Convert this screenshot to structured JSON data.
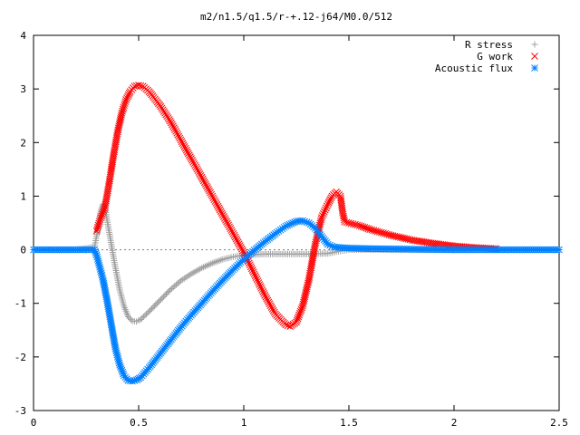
{
  "chart_data": {
    "type": "scatter",
    "title": "m2/n1.5/q1.5/r-+.12-j64/M0.0/512",
    "xlabel": "",
    "ylabel": "",
    "xlim": [
      0,
      2.5
    ],
    "ylim": [
      -3,
      4
    ],
    "x_ticks": [
      "0",
      "0.5",
      "1",
      "1.5",
      "2",
      "2.5"
    ],
    "y_ticks": [
      "-3",
      "-2",
      "-1",
      "0",
      "1",
      "2",
      "3",
      "4"
    ],
    "grid": false,
    "legend_position": "top-right",
    "series": [
      {
        "name": "R stress",
        "color": "#a0a0a0",
        "marker": "plus",
        "x": [
          0.0,
          0.1,
          0.2,
          0.29,
          0.3,
          0.31,
          0.32,
          0.33,
          0.34,
          0.35,
          0.37,
          0.39,
          0.41,
          0.43,
          0.45,
          0.47,
          0.49,
          0.51,
          0.55,
          0.6,
          0.65,
          0.7,
          0.75,
          0.8,
          0.85,
          0.9,
          0.95,
          1.0,
          1.1,
          1.2,
          1.3,
          1.4,
          1.45,
          1.5,
          1.6,
          1.8,
          2.0,
          2.2,
          2.5
        ],
        "y": [
          0.0,
          0.0,
          0.0,
          0.05,
          0.25,
          0.5,
          0.72,
          0.85,
          0.8,
          0.55,
          0.1,
          -0.35,
          -0.75,
          -1.05,
          -1.25,
          -1.33,
          -1.34,
          -1.3,
          -1.15,
          -0.95,
          -0.75,
          -0.58,
          -0.45,
          -0.34,
          -0.25,
          -0.18,
          -0.13,
          -0.1,
          -0.08,
          -0.08,
          -0.08,
          -0.07,
          -0.03,
          0.0,
          0.0,
          0.0,
          0.0,
          0.0,
          0.0
        ]
      },
      {
        "name": "G work",
        "color": "#ff0000",
        "marker": "x",
        "x": [
          0.3,
          0.32,
          0.34,
          0.36,
          0.38,
          0.4,
          0.42,
          0.44,
          0.46,
          0.48,
          0.5,
          0.52,
          0.55,
          0.6,
          0.65,
          0.7,
          0.75,
          0.8,
          0.85,
          0.9,
          0.95,
          1.0,
          1.05,
          1.1,
          1.15,
          1.2,
          1.22,
          1.25,
          1.28,
          1.31,
          1.34,
          1.37,
          1.4,
          1.42,
          1.44,
          1.46,
          1.47,
          1.48,
          1.5,
          1.55,
          1.6,
          1.7,
          1.8,
          1.9,
          2.0,
          2.1,
          2.2
        ],
        "y": [
          0.35,
          0.6,
          0.8,
          1.25,
          1.75,
          2.2,
          2.55,
          2.8,
          2.95,
          3.05,
          3.07,
          3.05,
          2.95,
          2.7,
          2.4,
          2.05,
          1.7,
          1.35,
          1.0,
          0.65,
          0.3,
          -0.05,
          -0.45,
          -0.85,
          -1.2,
          -1.4,
          -1.43,
          -1.35,
          -1.05,
          -0.55,
          0.1,
          0.6,
          0.85,
          1.0,
          1.08,
          1.0,
          0.7,
          0.52,
          0.5,
          0.45,
          0.38,
          0.27,
          0.18,
          0.12,
          0.07,
          0.04,
          0.02
        ]
      },
      {
        "name": "Acoustic flux",
        "color": "#0080ff",
        "marker": "star",
        "x": [
          0.0,
          0.1,
          0.2,
          0.29,
          0.3,
          0.31,
          0.32,
          0.33,
          0.35,
          0.37,
          0.39,
          0.41,
          0.43,
          0.45,
          0.47,
          0.49,
          0.51,
          0.55,
          0.6,
          0.65,
          0.7,
          0.75,
          0.8,
          0.85,
          0.9,
          0.95,
          1.0,
          1.05,
          1.1,
          1.15,
          1.2,
          1.25,
          1.28,
          1.31,
          1.34,
          1.37,
          1.4,
          1.43,
          1.46,
          1.5,
          1.6,
          1.8,
          2.0,
          2.2,
          2.5
        ],
        "y": [
          0.0,
          0.0,
          0.0,
          0.0,
          -0.1,
          -0.25,
          -0.4,
          -0.55,
          -0.95,
          -1.4,
          -1.85,
          -2.15,
          -2.35,
          -2.44,
          -2.45,
          -2.43,
          -2.38,
          -2.2,
          -1.95,
          -1.7,
          -1.45,
          -1.22,
          -1.0,
          -0.78,
          -0.57,
          -0.37,
          -0.18,
          -0.01,
          0.15,
          0.3,
          0.44,
          0.53,
          0.54,
          0.5,
          0.4,
          0.25,
          0.1,
          0.05,
          0.04,
          0.03,
          0.02,
          0.01,
          0.0,
          0.0,
          0.0
        ]
      }
    ]
  }
}
